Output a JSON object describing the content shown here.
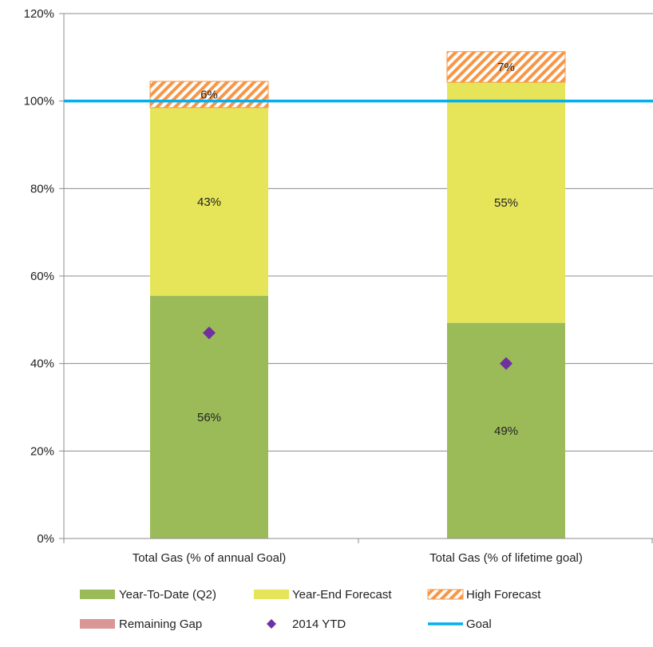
{
  "chart_data": {
    "type": "bar",
    "stacked": true,
    "categories": [
      "Total Gas (% of annual Goal)",
      "Total Gas (% of lifetime goal)"
    ],
    "series": [
      {
        "name": "Year-To-Date  (Q2)",
        "values": [
          55.5,
          49.3
        ],
        "labels": [
          "56%",
          "49%"
        ],
        "color": "#9bbb59",
        "pattern": "solid"
      },
      {
        "name": "Year-End Forecast",
        "values": [
          43.0,
          55.0
        ],
        "labels": [
          "43%",
          "55%"
        ],
        "color": "#e6e55a",
        "pattern": "solid"
      },
      {
        "name": "High Forecast",
        "values": [
          6.0,
          7.0
        ],
        "labels": [
          "6%",
          "7%"
        ],
        "color": "#f79646",
        "pattern": "hatch"
      },
      {
        "name": "Remaining Gap",
        "values": [
          0,
          0
        ],
        "labels": [
          "",
          ""
        ],
        "color": "#d99694",
        "pattern": "solid"
      }
    ],
    "markers": {
      "name": "2014 YTD",
      "values": [
        47,
        40
      ],
      "color": "#7030a0",
      "shape": "diamond"
    },
    "goal_line": {
      "name": "Goal",
      "value": 100,
      "color": "#00b0f0"
    },
    "y_ticks": [
      "0%",
      "20%",
      "40%",
      "60%",
      "80%",
      "100%",
      "120%"
    ],
    "ylim": [
      0,
      120
    ],
    "grid": true,
    "title": "",
    "xlabel": "",
    "ylabel": "",
    "legend_position": "bottom"
  }
}
